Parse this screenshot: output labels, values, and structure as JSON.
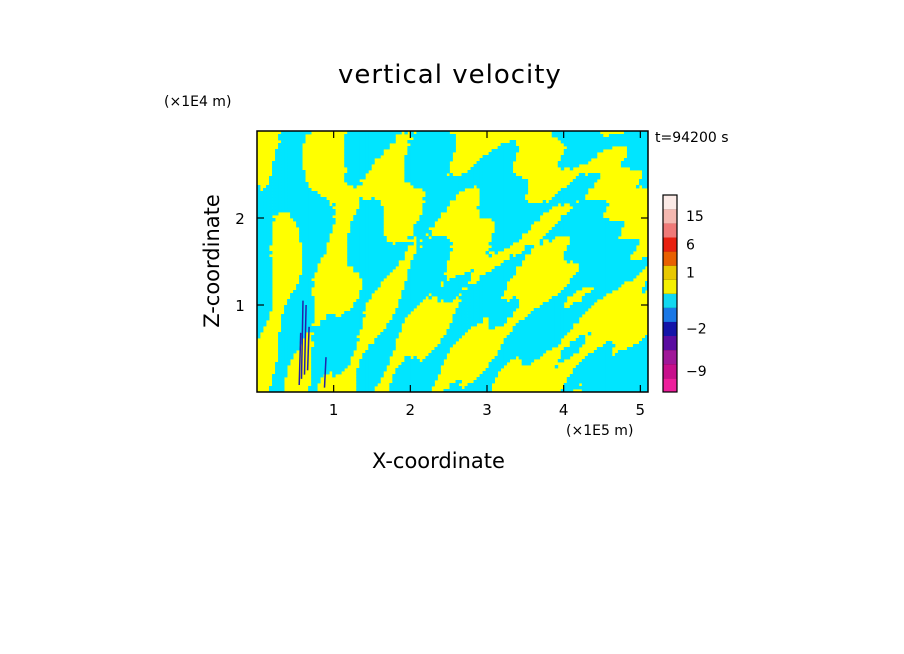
{
  "chart_data": {
    "type": "heatmap",
    "title": "vertical velocity",
    "xlabel": "X-coordinate",
    "ylabel": "Z-coordinate",
    "x_unit": "(×1E5 m)",
    "y_unit": "(×1E4 m)",
    "time_label": "t=94200 s",
    "xlim": [
      0,
      5.1
    ],
    "ylim": [
      0,
      3.0
    ],
    "x_ticks": [
      1,
      2,
      3,
      4,
      5
    ],
    "x_tick_labels": [
      "1",
      "2",
      "3",
      "4",
      "5"
    ],
    "y_ticks": [
      1,
      2
    ],
    "y_tick_labels": [
      "1",
      "2"
    ],
    "colorbar": {
      "levels": [
        {
          "color": "#ee1f9c",
          "label": ""
        },
        {
          "color": "#c8108c",
          "label": "−9"
        },
        {
          "color": "#a01899",
          "label": ""
        },
        {
          "color": "#5a0ca0",
          "label": ""
        },
        {
          "color": "#1414a8",
          "label": "−2"
        },
        {
          "color": "#1a78e6",
          "label": ""
        },
        {
          "color": "#12d8f0",
          "label": ""
        },
        {
          "color": "#f5f000",
          "label": ""
        },
        {
          "color": "#e8c800",
          "label": "1"
        },
        {
          "color": "#e86000",
          "label": ""
        },
        {
          "color": "#e82010",
          "label": "6"
        },
        {
          "color": "#f07a78",
          "label": ""
        },
        {
          "color": "#f5b8b0",
          "label": "15"
        },
        {
          "color": "#fbeae6",
          "label": ""
        }
      ]
    },
    "field": {
      "dominant_colors": [
        "#ffff00",
        "#00e5ff"
      ],
      "accent_color": "#2222aa"
    }
  }
}
